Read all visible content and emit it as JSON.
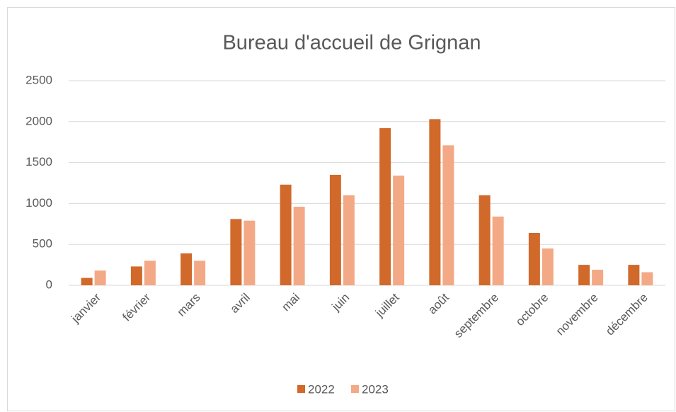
{
  "chart_data": {
    "type": "bar",
    "title": "Bureau d'accueil de Grignan",
    "categories": [
      "janvier",
      "février",
      "mars",
      "avril",
      "mai",
      "juin",
      "juillet",
      "août",
      "septembre",
      "octobre",
      "novembre",
      "décembre"
    ],
    "series": [
      {
        "name": "2022",
        "color": "#d0692a",
        "values": [
          90,
          230,
          390,
          810,
          1230,
          1350,
          1920,
          2030,
          1100,
          640,
          250,
          250
        ]
      },
      {
        "name": "2023",
        "color": "#f4a986",
        "values": [
          180,
          300,
          300,
          790,
          960,
          1100,
          1340,
          1710,
          840,
          450,
          190,
          160
        ]
      }
    ],
    "ylim": [
      0,
      2500
    ],
    "yticks": [
      0,
      500,
      1000,
      1500,
      2000,
      2500
    ],
    "grid": true,
    "legend": "bottom"
  }
}
